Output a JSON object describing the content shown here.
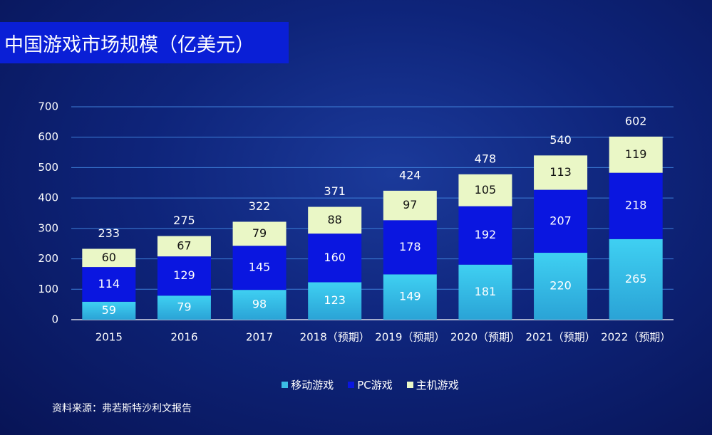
{
  "title": "中国游戏市场规模（亿美元）",
  "source": "资料来源：弗若斯特沙利文报告",
  "colors": {
    "mobile": "#3bbde6",
    "pc": "#0a16e0",
    "console": "#eaf7c6",
    "axis": "#ffffff",
    "grid": "#3f7fd8"
  },
  "chart_data": {
    "type": "bar",
    "stacked": true,
    "categories": [
      "2015",
      "2016",
      "2017",
      "2018（预期）",
      "2019（预期）",
      "2020（预期）",
      "2021（预期）",
      "2022（预期）"
    ],
    "series": [
      {
        "name": "移动游戏",
        "values": [
          59,
          79,
          98,
          123,
          149,
          181,
          220,
          265
        ]
      },
      {
        "name": "PC游戏",
        "values": [
          114,
          129,
          145,
          160,
          178,
          192,
          207,
          218
        ]
      },
      {
        "name": "主机游戏",
        "values": [
          60,
          67,
          79,
          88,
          97,
          105,
          113,
          119
        ]
      }
    ],
    "totals": [
      233,
      275,
      322,
      371,
      424,
      478,
      540,
      602
    ],
    "ylim": [
      0,
      700
    ],
    "yticks": [
      0,
      100,
      200,
      300,
      400,
      500,
      600,
      700
    ],
    "grid": true,
    "legend_position": "bottom"
  }
}
